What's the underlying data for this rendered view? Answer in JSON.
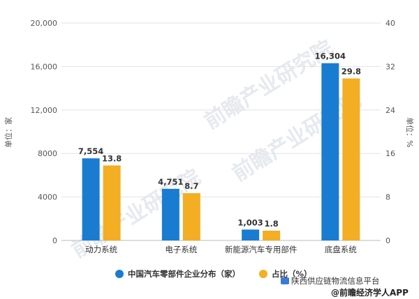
{
  "chart_data": {
    "type": "bar",
    "categories": [
      "动力系统",
      "电子系统",
      "新能源汽车专用部件",
      "底盘系统"
    ],
    "series": [
      {
        "name": "中国汽车零部件企业分布（家）",
        "values": [
          7554,
          4751,
          1003,
          16304
        ],
        "labels": [
          "7,554",
          "4,751",
          "1,003",
          "16,304"
        ],
        "axis": "left",
        "color": "#1a7cd1"
      },
      {
        "name": "占比（%）",
        "values": [
          13.8,
          8.7,
          1.8,
          29.8
        ],
        "labels": [
          "13.8",
          "8.7",
          "1.8",
          "29.8"
        ],
        "axis": "right",
        "color": "#f3ae24"
      }
    ],
    "ylabel": "单位：家",
    "y2label": "单位：%",
    "ylim": [
      0,
      20000
    ],
    "y2lim": [
      0,
      40
    ],
    "yticks": [
      "0",
      "4000",
      "8000",
      "12,000",
      "16,000",
      "20,000"
    ],
    "y2ticks": [
      "0",
      "8",
      "16",
      "24",
      "32",
      "40"
    ],
    "grid": true,
    "legend": "bottom"
  },
  "watermark": "前瞻产业研究院",
  "footer": {
    "line1": "陕西供应链物流信息平台",
    "line2": "@前瞻经济学人APP"
  }
}
